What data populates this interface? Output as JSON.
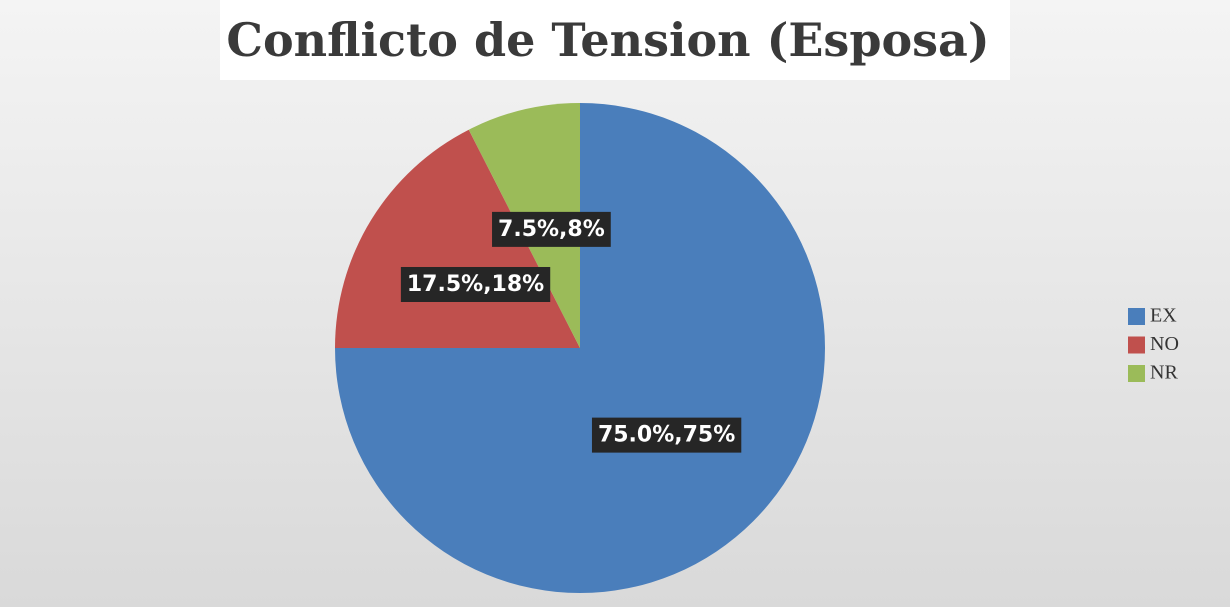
{
  "chart_data": {
    "type": "pie",
    "title": "Conflicto de Tension (Esposa)",
    "categories": [
      "EX",
      "NO",
      "NR"
    ],
    "values": [
      75.0,
      17.5,
      7.5
    ],
    "value_labels": [
      "75.0%,75%",
      "17.5%,18%",
      "7.5%,8%"
    ],
    "colors": [
      "#4a7ebb",
      "#c0504d",
      "#9bbb59"
    ],
    "legend": "right"
  }
}
